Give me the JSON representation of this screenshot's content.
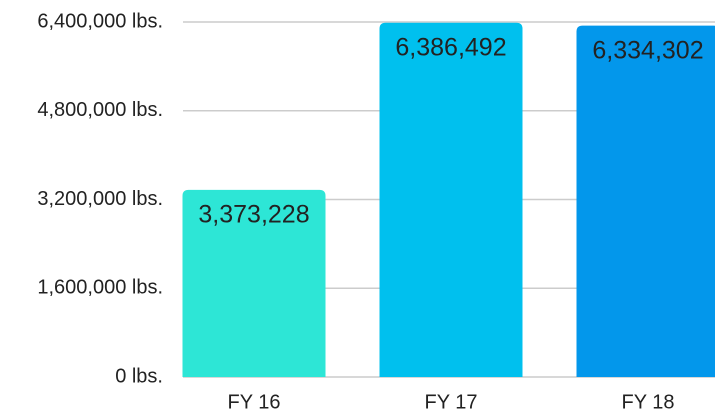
{
  "chart_data": {
    "type": "bar",
    "categories": [
      "FY 16",
      "FY 17",
      "FY 18"
    ],
    "values": [
      3373228,
      6386492,
      6334302
    ],
    "value_labels": [
      "3,373,228",
      "6,386,492",
      "6,334,302"
    ],
    "colors": [
      "#2de6d6",
      "#00c0ee",
      "#0397eb"
    ],
    "ylim": [
      0,
      6400000
    ],
    "yticks": [
      {
        "value": 0,
        "label": "0 lbs."
      },
      {
        "value": 1600000,
        "label": "1,600,000 lbs."
      },
      {
        "value": 3200000,
        "label": "3,200,000 lbs."
      },
      {
        "value": 4800000,
        "label": "4,800,000 lbs."
      },
      {
        "value": 6400000,
        "label": "6,400,000 lbs."
      }
    ],
    "grid": true
  }
}
